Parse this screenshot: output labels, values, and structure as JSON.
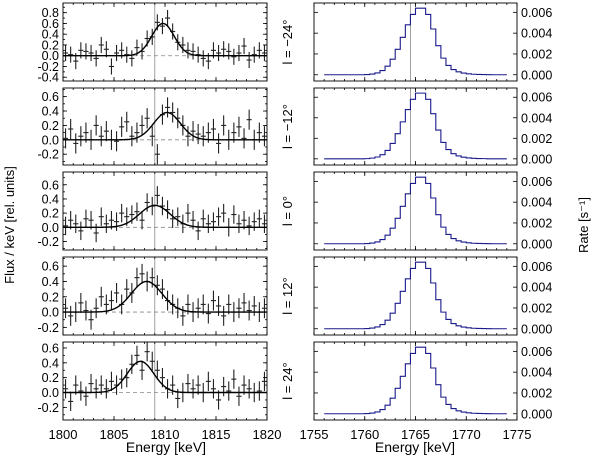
{
  "chart_data": {
    "type": "line",
    "left_ylabel": "Flux / keV [rel. units]",
    "right_ylabel": "Rate [s⁻¹]",
    "left_xlabel": "Energy [keV]",
    "right_xlabel": "Energy [keV]",
    "left_xlim": [
      1800,
      1820
    ],
    "right_xlim": [
      1755,
      1775
    ],
    "left_xticks": [
      "1800",
      "1805",
      "1810",
      "1815",
      "1820"
    ],
    "right_xticks": [
      "1755",
      "1760",
      "1765",
      "1770",
      "1775"
    ],
    "left_reference_energy": 1809,
    "right_reference_energy": 1764.5,
    "right_yticks": [
      "0.000",
      "0.002",
      "0.004",
      "0.006"
    ],
    "right_ylim": [
      -0.0006,
      0.0069
    ],
    "hist_bin_width": 0.5,
    "hist_values": [
      0,
      0,
      2e-05,
      7e-05,
      0.00018,
      0.0004,
      0.00082,
      0.0015,
      0.00245,
      0.0036,
      0.0048,
      0.0058,
      0.0064,
      0.0064,
      0.0058,
      0.0044,
      0.0028,
      0.0016,
      0.0009,
      0.0005,
      0.00028,
      0.00016,
      9e-05,
      5e-05,
      3e-05,
      2e-05,
      1e-05,
      0,
      0,
      0
    ],
    "hist_start": 1759.0,
    "panels": [
      {
        "label": "l = −24°",
        "ylim": [
          -0.47,
          0.98
        ],
        "yticks": [
          "0.8",
          "0.6",
          "0.4",
          "0.2",
          "0.0",
          "-0.2",
          "-0.4"
        ],
        "fit": {
          "amplitude": 0.6,
          "center": 1809.8,
          "sigma": 1.1
        },
        "data_x": [
          1800.25,
          1800.75,
          1801.25,
          1801.75,
          1802.25,
          1802.75,
          1803.25,
          1803.75,
          1804.25,
          1804.75,
          1805.25,
          1805.75,
          1806.25,
          1806.75,
          1807.25,
          1807.75,
          1808.25,
          1808.75,
          1809.25,
          1809.75,
          1810.25,
          1810.75,
          1811.25,
          1811.75,
          1812.25,
          1812.75,
          1813.25,
          1813.75,
          1814.25,
          1814.75,
          1815.25,
          1815.75,
          1816.25,
          1816.75,
          1817.25,
          1817.75,
          1818.25,
          1818.75,
          1819.25,
          1819.75
        ],
        "data_y": [
          0.05,
          0.02,
          -0.1,
          0.1,
          0.08,
          0.05,
          -0.05,
          0.2,
          0.12,
          -0.2,
          0.05,
          0.1,
          0.02,
          -0.05,
          0.15,
          0.08,
          0.32,
          0.35,
          0.62,
          0.55,
          0.7,
          0.45,
          0.25,
          0.2,
          0.1,
          0.08,
          0.02,
          -0.05,
          -0.1,
          0.1,
          0.05,
          0.12,
          0.08,
          -0.02,
          0.05,
          0.18,
          -0.08,
          0.02,
          0.1,
          0.05
        ],
        "err": 0.15
      },
      {
        "label": "l = −12°",
        "ylim": [
          -0.35,
          0.72
        ],
        "yticks": [
          "0.6",
          "0.4",
          "0.2",
          "0.0",
          "-0.2"
        ],
        "fit": {
          "amplitude": 0.38,
          "center": 1810.2,
          "sigma": 1.3
        },
        "data_x": [
          1800.25,
          1800.75,
          1801.25,
          1801.75,
          1802.25,
          1802.75,
          1803.25,
          1803.75,
          1804.25,
          1804.75,
          1805.25,
          1805.75,
          1806.25,
          1806.75,
          1807.25,
          1807.75,
          1808.25,
          1808.75,
          1809.25,
          1809.75,
          1810.25,
          1810.75,
          1811.25,
          1811.75,
          1812.25,
          1812.75,
          1813.25,
          1813.75,
          1814.25,
          1814.75,
          1815.25,
          1815.75,
          1816.25,
          1816.75,
          1817.25,
          1817.75,
          1818.25,
          1818.75,
          1819.25,
          1819.75
        ],
        "data_y": [
          0.02,
          0.15,
          -0.05,
          0.05,
          0.1,
          0.0,
          0.2,
          0.05,
          0.12,
          0.0,
          -0.02,
          0.18,
          0.25,
          0.05,
          0.1,
          0.2,
          0.3,
          0.05,
          -0.2,
          0.35,
          0.45,
          0.38,
          0.3,
          0.2,
          0.05,
          0.12,
          0.08,
          0.05,
          0.1,
          0.15,
          -0.05,
          0.2,
          0.0,
          0.1,
          0.18,
          0.02,
          0.28,
          0.0,
          0.1,
          0.05
        ],
        "err": 0.14
      },
      {
        "label": "l = 0°",
        "ylim": [
          -0.32,
          0.78
        ],
        "yticks": [
          "0.6",
          "0.4",
          "0.2",
          "0.0",
          "-0.2"
        ],
        "fit": {
          "amplitude": 0.31,
          "center": 1809.0,
          "sigma": 1.5
        },
        "data_x": [
          1800.25,
          1800.75,
          1801.25,
          1801.75,
          1802.25,
          1802.75,
          1803.25,
          1803.75,
          1804.25,
          1804.75,
          1805.25,
          1805.75,
          1806.25,
          1806.75,
          1807.25,
          1807.75,
          1808.25,
          1808.75,
          1809.25,
          1809.75,
          1810.25,
          1810.75,
          1811.25,
          1811.75,
          1812.25,
          1812.75,
          1813.25,
          1813.75,
          1814.25,
          1814.75,
          1815.25,
          1815.75,
          1816.25,
          1816.75,
          1817.25,
          1817.75,
          1818.25,
          1818.75,
          1819.25,
          1819.75
        ],
        "data_y": [
          0.02,
          0.1,
          0.05,
          -0.05,
          0.12,
          0.1,
          -0.08,
          0.15,
          0.05,
          0.1,
          0.08,
          0.2,
          0.15,
          0.18,
          0.22,
          0.1,
          0.35,
          0.3,
          0.45,
          0.3,
          0.25,
          0.12,
          0.15,
          0.05,
          0.2,
          0.1,
          -0.05,
          0.12,
          0.05,
          0.08,
          0.15,
          0.2,
          0.0,
          0.18,
          0.05,
          0.1,
          0.02,
          0.08,
          0.12,
          0.05
        ],
        "err": 0.13
      },
      {
        "label": "l = 12°",
        "ylim": [
          -0.3,
          0.72
        ],
        "yticks": [
          "0.6",
          "0.4",
          "0.2",
          "0.0",
          "-0.2"
        ],
        "fit": {
          "amplitude": 0.4,
          "center": 1808.2,
          "sigma": 1.5
        },
        "data_x": [
          1800.25,
          1800.75,
          1801.25,
          1801.75,
          1802.25,
          1802.75,
          1803.25,
          1803.75,
          1804.25,
          1804.75,
          1805.25,
          1805.75,
          1806.25,
          1806.75,
          1807.25,
          1807.75,
          1808.25,
          1808.75,
          1809.25,
          1809.75,
          1810.25,
          1810.75,
          1811.25,
          1811.75,
          1812.25,
          1812.75,
          1813.25,
          1813.75,
          1814.25,
          1814.75,
          1815.25,
          1815.75,
          1816.25,
          1816.75,
          1817.25,
          1817.75,
          1818.25,
          1818.75,
          1819.25,
          1819.75
        ],
        "data_y": [
          0.05,
          -0.05,
          0.0,
          0.12,
          0.02,
          -0.1,
          0.05,
          0.2,
          0.1,
          0.15,
          0.25,
          0.1,
          0.3,
          0.25,
          0.45,
          0.5,
          0.4,
          0.45,
          0.35,
          0.3,
          0.15,
          0.1,
          0.05,
          -0.05,
          0.1,
          0.0,
          0.05,
          0.1,
          -0.02,
          0.15,
          0.08,
          -0.05,
          0.1,
          0.0,
          0.05,
          0.12,
          0.02,
          0.08,
          0.0,
          0.05
        ],
        "err": 0.13
      },
      {
        "label": "l = 24°",
        "ylim": [
          -0.37,
          0.68
        ],
        "yticks": [
          "0.6",
          "0.4",
          "0.2",
          "0.0",
          "-0.2"
        ],
        "fit": {
          "amplitude": 0.42,
          "center": 1807.6,
          "sigma": 1.3
        },
        "data_x": [
          1800.25,
          1800.75,
          1801.25,
          1801.75,
          1802.25,
          1802.75,
          1803.25,
          1803.75,
          1804.25,
          1804.75,
          1805.25,
          1805.75,
          1806.25,
          1806.75,
          1807.25,
          1807.75,
          1808.25,
          1808.75,
          1809.25,
          1809.75,
          1810.25,
          1810.75,
          1811.25,
          1811.75,
          1812.25,
          1812.75,
          1813.25,
          1813.75,
          1814.25,
          1814.75,
          1815.25,
          1815.75,
          1816.25,
          1816.75,
          1817.25,
          1817.75,
          1818.25,
          1818.75,
          1819.25,
          1819.75
        ],
        "data_y": [
          0.05,
          -0.12,
          0.1,
          0.02,
          -0.05,
          0.12,
          0.05,
          0.1,
          0.05,
          0.15,
          0.1,
          0.18,
          0.2,
          0.38,
          0.5,
          0.3,
          0.55,
          0.42,
          0.3,
          0.2,
          0.05,
          0.1,
          -0.08,
          0.0,
          0.12,
          0.05,
          0.1,
          0.0,
          0.15,
          0.05,
          -0.1,
          0.08,
          0.02,
          0.18,
          -0.05,
          0.1,
          0.05,
          0.0,
          0.02,
          0.15
        ],
        "err": 0.13
      }
    ]
  }
}
